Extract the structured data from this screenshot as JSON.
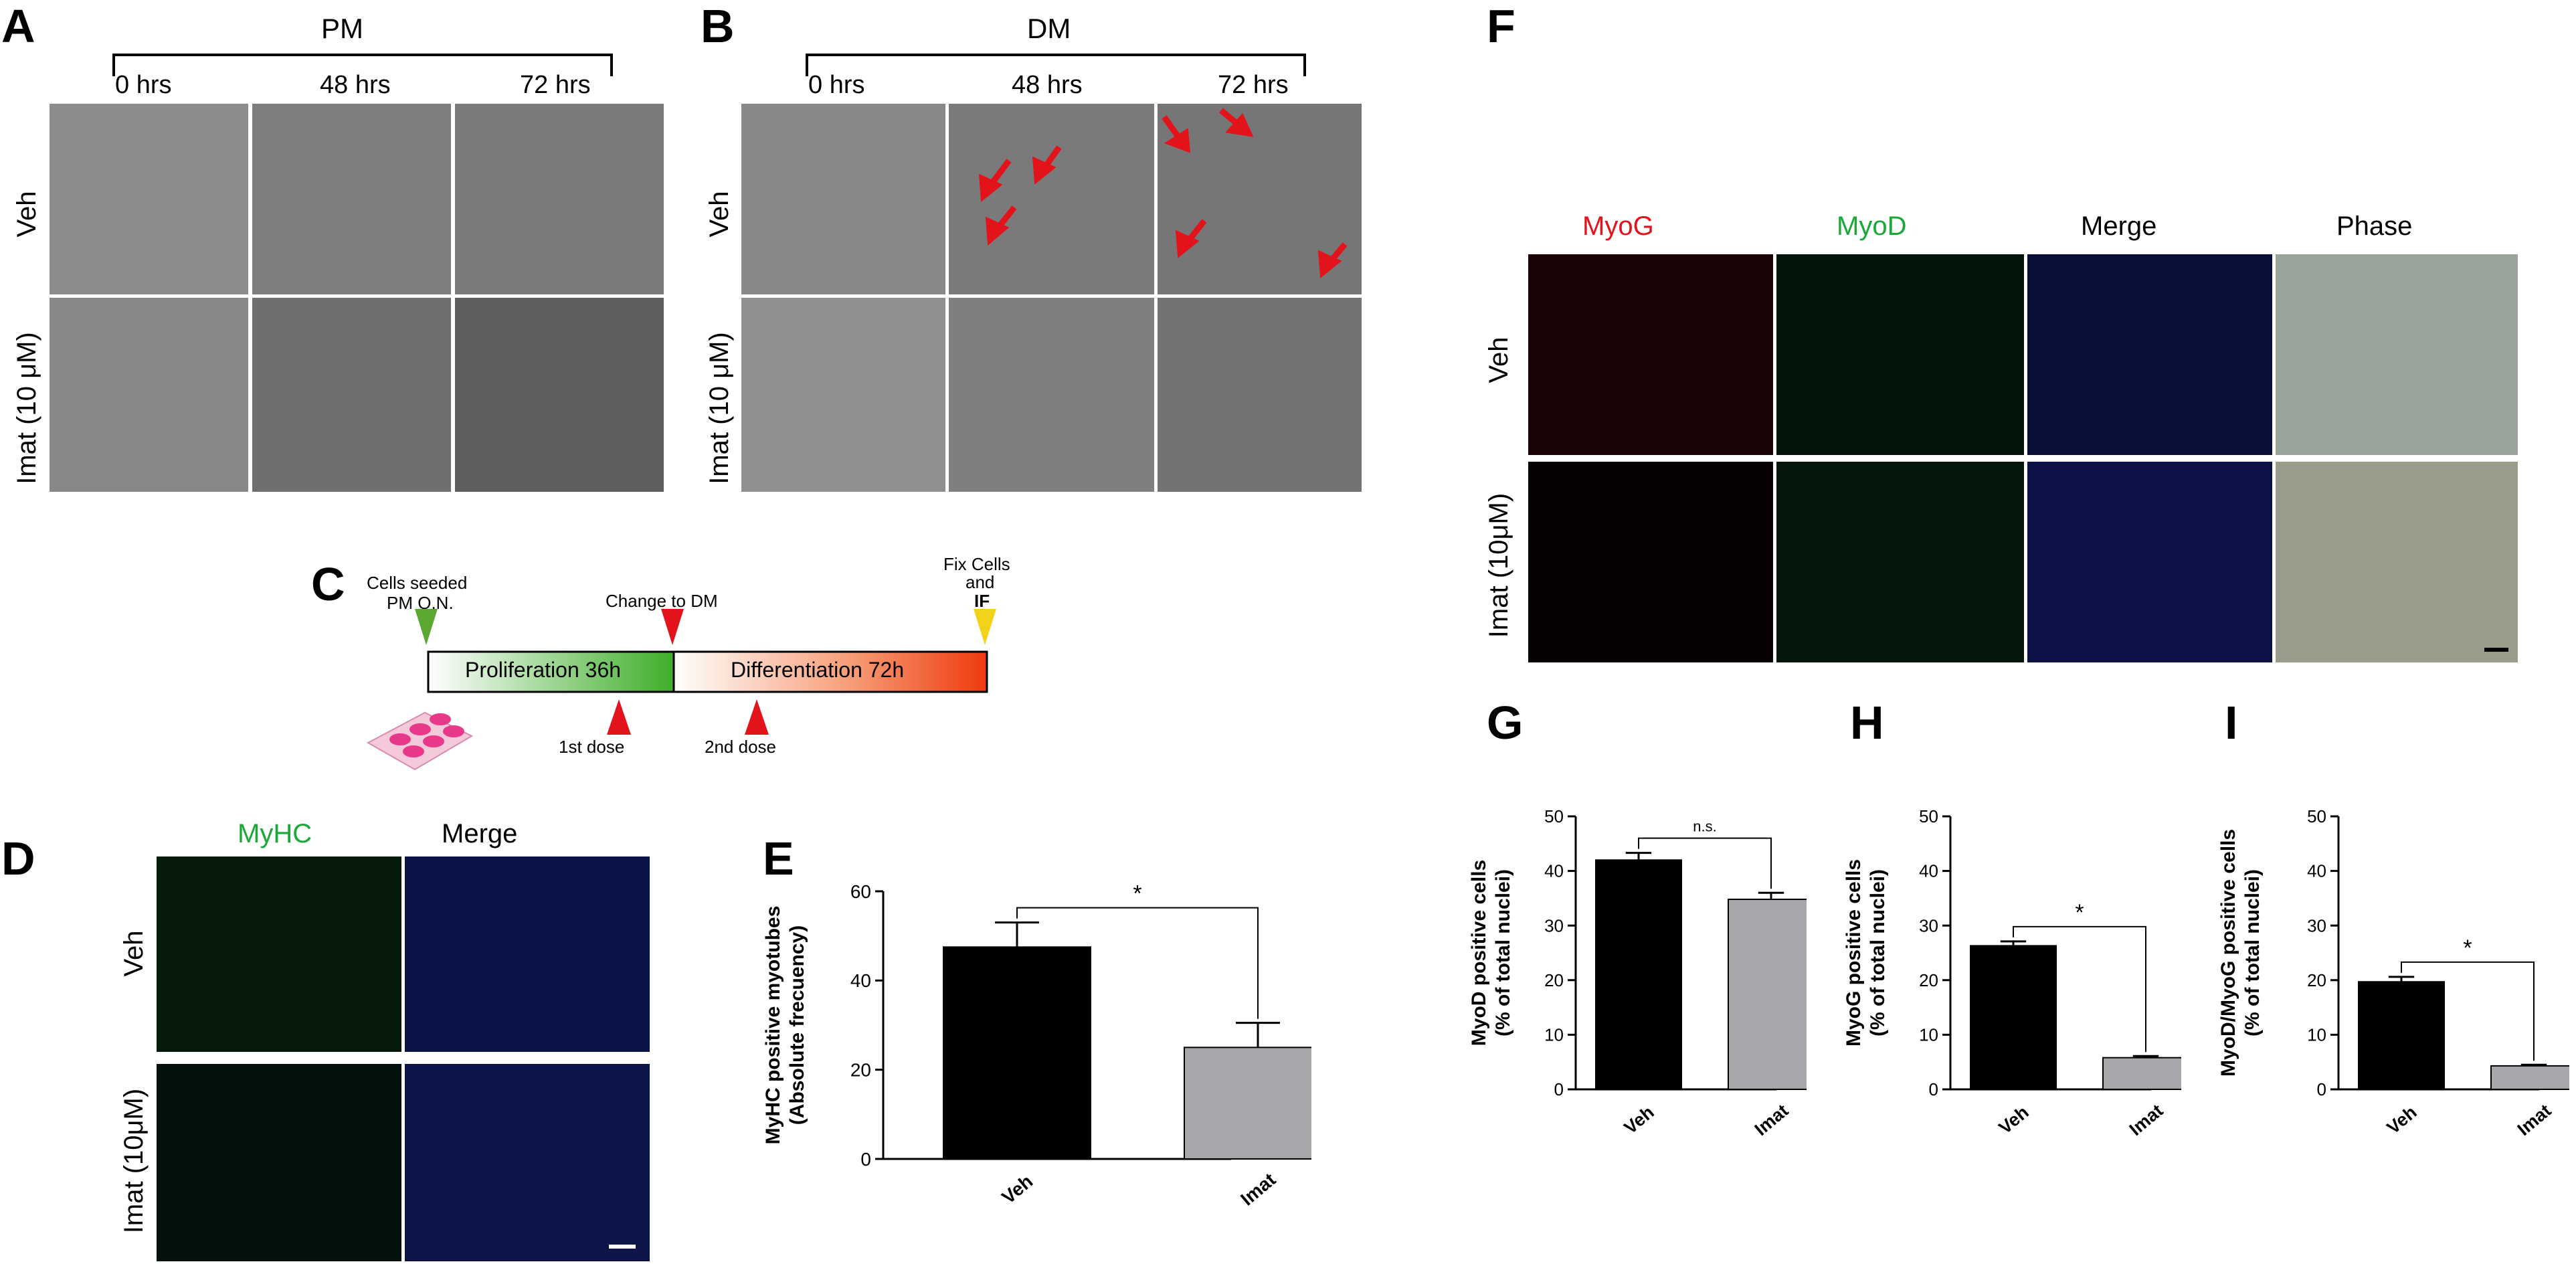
{
  "panels": {
    "A": {
      "letter": "A",
      "condition": "PM",
      "timepoints": [
        "0 hrs",
        "48 hrs",
        "72 hrs"
      ],
      "rows": [
        "Veh",
        "Imat (10 μM)"
      ]
    },
    "B": {
      "letter": "B",
      "condition": "DM",
      "timepoints": [
        "0 hrs",
        "48 hrs",
        "72 hrs"
      ],
      "rows": [
        "Veh",
        "Imat (10 μM)"
      ]
    },
    "C": {
      "letter": "C",
      "cells_seeded_1": "Cells seeded",
      "cells_seeded_2": "PM O.N.",
      "change_dm": "Change to DM",
      "fix_1": "Fix Cells",
      "fix_2": "and",
      "fix_3": "IF",
      "proliferation": "Proliferation 36h",
      "differentiation": "Differentiation 72h",
      "dose1": "1st dose",
      "dose2": "2nd dose",
      "colors": {
        "seed": "#5aa832",
        "change": "#e3131b",
        "fix": "#f2d31b",
        "prolif_end": "#3fae2a",
        "diff_end": "#ee3a0e"
      }
    },
    "D": {
      "letter": "D",
      "columns": [
        "MyHC",
        "Merge"
      ],
      "rows": [
        "Veh",
        "Imat (10μM)"
      ],
      "colors": {
        "myhc": "#1aa838",
        "merge": "#000000"
      }
    },
    "F": {
      "letter": "F",
      "columns": [
        "MyoG",
        "MyoD",
        "Merge",
        "Phase"
      ],
      "rows": [
        "Veh",
        "Imat (10μM)"
      ],
      "colors": {
        "myog": "#e3131b",
        "myod": "#1aa838",
        "merge": "#000000",
        "phase": "#000000"
      }
    }
  },
  "chart_data": [
    {
      "id": "E",
      "letter": "E",
      "type": "bar",
      "categories": [
        "Veh",
        "Imat"
      ],
      "values": [
        47.5,
        25
      ],
      "errors": [
        5.5,
        5.5
      ],
      "ylabel_1": "MyHC positive myotubes",
      "ylabel_2": "(Absolute frecuency)",
      "ylim": [
        0,
        60
      ],
      "yticks": [
        0,
        20,
        40,
        60
      ],
      "significance": "*",
      "colors": [
        "#000000",
        "#a7a7ab"
      ]
    },
    {
      "id": "G",
      "letter": "G",
      "type": "bar",
      "categories": [
        "Veh",
        "Imat"
      ],
      "values": [
        42,
        34.8
      ],
      "errors": [
        1.3,
        1.2
      ],
      "ylabel_1": "MyoD positive cells",
      "ylabel_2": "(% of total nuclei)",
      "ylim": [
        0,
        50
      ],
      "yticks": [
        0,
        10,
        20,
        30,
        40,
        50
      ],
      "significance": "n.s.",
      "colors": [
        "#000000",
        "#a7a7ab"
      ]
    },
    {
      "id": "H",
      "letter": "H",
      "type": "bar",
      "categories": [
        "Veh",
        "Imat"
      ],
      "values": [
        26.3,
        5.8
      ],
      "errors": [
        0.8,
        0.3
      ],
      "ylabel_1": "MyoG positive cells",
      "ylabel_2": "(% of total nuclei)",
      "ylim": [
        0,
        50
      ],
      "yticks": [
        0,
        10,
        20,
        30,
        40,
        50
      ],
      "significance": "*",
      "colors": [
        "#000000",
        "#a7a7ab"
      ]
    },
    {
      "id": "I",
      "letter": "I",
      "type": "bar",
      "categories": [
        "Veh",
        "Imat"
      ],
      "values": [
        19.7,
        4.3
      ],
      "errors": [
        0.9,
        0.2
      ],
      "ylabel_1": "MyoD/MyoG positive cells",
      "ylabel_2": "(% of total nuclei)",
      "ylim": [
        0,
        50
      ],
      "yticks": [
        0,
        10,
        20,
        30,
        40,
        50
      ],
      "significance": "*",
      "colors": [
        "#000000",
        "#a7a7ab"
      ]
    }
  ]
}
